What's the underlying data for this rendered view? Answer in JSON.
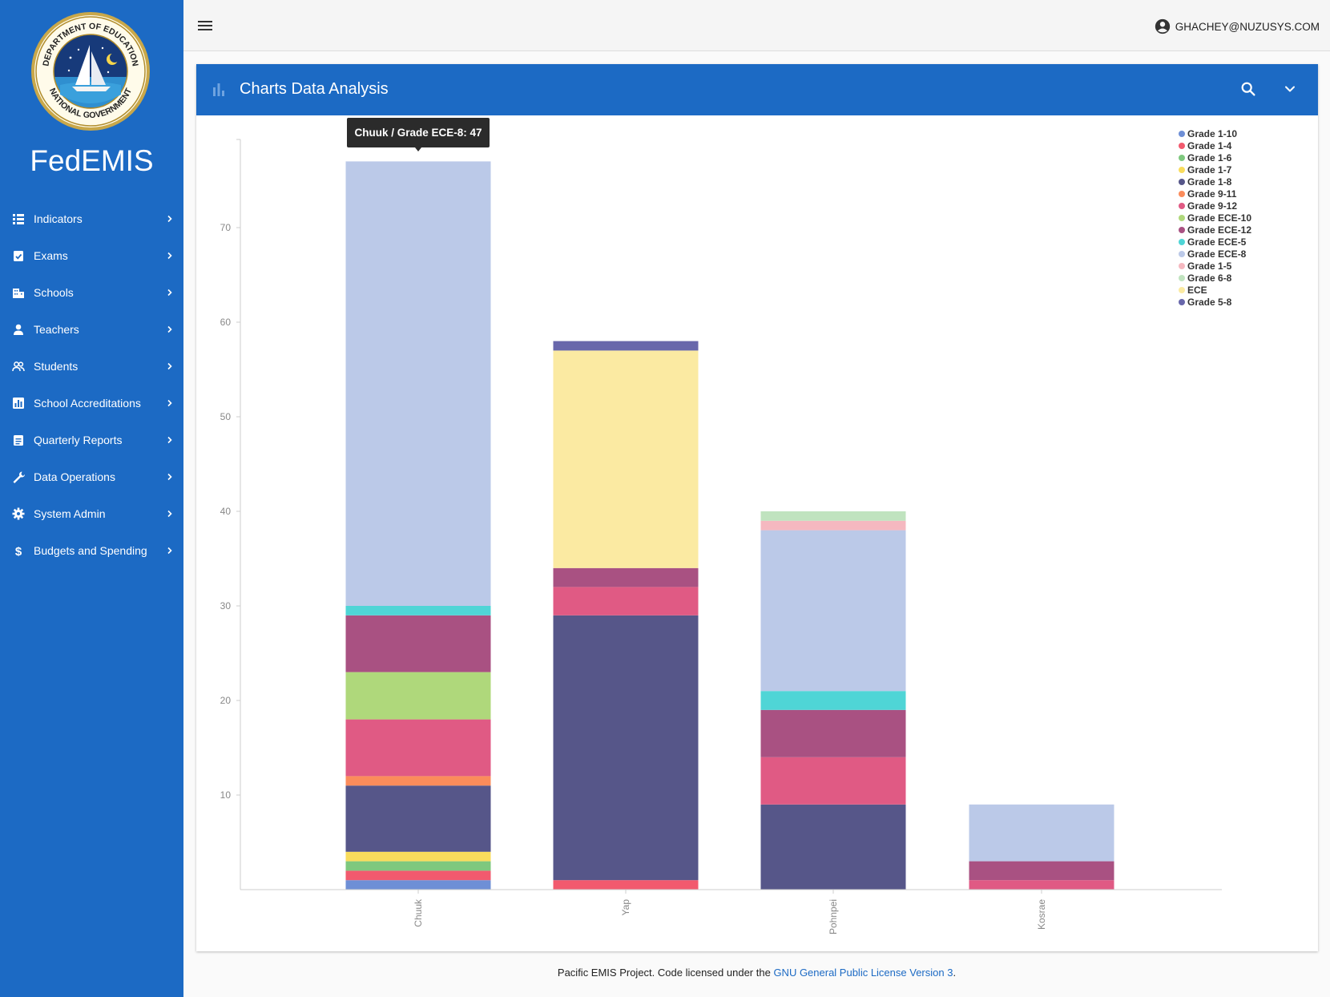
{
  "app": {
    "name": "FedEMIS"
  },
  "logo": {
    "top_text": "DEPARTMENT OF EDUCATION",
    "bottom_text": "NATIONAL GOVERNMENT"
  },
  "sidebar": {
    "items": [
      {
        "label": "Indicators",
        "icon": "list-icon"
      },
      {
        "label": "Exams",
        "icon": "clipboard-check-icon"
      },
      {
        "label": "Schools",
        "icon": "building-icon"
      },
      {
        "label": "Teachers",
        "icon": "person-icon"
      },
      {
        "label": "Students",
        "icon": "people-icon"
      },
      {
        "label": "School Accreditations",
        "icon": "bar-chart-icon"
      },
      {
        "label": "Quarterly Reports",
        "icon": "clipboard-icon"
      },
      {
        "label": "Data Operations",
        "icon": "wrench-icon"
      },
      {
        "label": "System Admin",
        "icon": "gear-icon"
      },
      {
        "label": "Budgets and Spending",
        "icon": "dollar-icon"
      }
    ]
  },
  "topbar": {
    "user": "GHACHEY@NUZUSYS.COM"
  },
  "card": {
    "title": "Charts Data Analysis"
  },
  "footer": {
    "text_before": "Pacific EMIS Project. Code licensed under the ",
    "link_text": "GNU General Public License Version 3",
    "text_after": "."
  },
  "chart_data": {
    "type": "bar",
    "stacked": true,
    "categories": [
      "Chuuk",
      "Yap",
      "Pohnpei",
      "Kosrae"
    ],
    "yticks": [
      10,
      20,
      30,
      40,
      50,
      60,
      70
    ],
    "ylim": [
      0,
      80
    ],
    "grid": false,
    "legend_position": "top-right",
    "series": [
      {
        "name": "Grade 1-10",
        "color": "#6e8fd6",
        "values": [
          1,
          0,
          0,
          0
        ]
      },
      {
        "name": "Grade 1-4",
        "color": "#f25a6e",
        "values": [
          1,
          1,
          0,
          0
        ]
      },
      {
        "name": "Grade 1-6",
        "color": "#7ec87e",
        "values": [
          1,
          0,
          0,
          0
        ]
      },
      {
        "name": "Grade 1-7",
        "color": "#f9dc5c",
        "values": [
          1,
          0,
          0,
          0
        ]
      },
      {
        "name": "Grade 1-8",
        "color": "#565689",
        "values": [
          7,
          28,
          9,
          0
        ]
      },
      {
        "name": "Grade 9-11",
        "color": "#fb8c5b",
        "values": [
          1,
          0,
          0,
          0
        ]
      },
      {
        "name": "Grade 9-12",
        "color": "#e05a84",
        "values": [
          6,
          3,
          5,
          1
        ]
      },
      {
        "name": "Grade ECE-10",
        "color": "#afd87b",
        "values": [
          5,
          0,
          0,
          0
        ]
      },
      {
        "name": "Grade ECE-12",
        "color": "#a95182",
        "values": [
          6,
          2,
          5,
          2
        ]
      },
      {
        "name": "Grade ECE-5",
        "color": "#4fd5d6",
        "values": [
          1,
          0,
          2,
          0
        ]
      },
      {
        "name": "Grade ECE-8",
        "color": "#bbc9e8",
        "values": [
          47,
          0,
          17,
          6
        ]
      },
      {
        "name": "Grade 1-5",
        "color": "#f5b8c0",
        "values": [
          0,
          0,
          1,
          0
        ]
      },
      {
        "name": "Grade 6-8",
        "color": "#c0e3bf",
        "values": [
          0,
          0,
          1,
          0
        ]
      },
      {
        "name": "ECE",
        "color": "#fbeaa2",
        "values": [
          0,
          23,
          0,
          0
        ]
      },
      {
        "name": "Grade 5-8",
        "color": "#6867ab",
        "values": [
          0,
          1,
          0,
          0
        ]
      }
    ],
    "tooltip": {
      "text": "Chuuk / Grade ECE-8: 47"
    }
  }
}
